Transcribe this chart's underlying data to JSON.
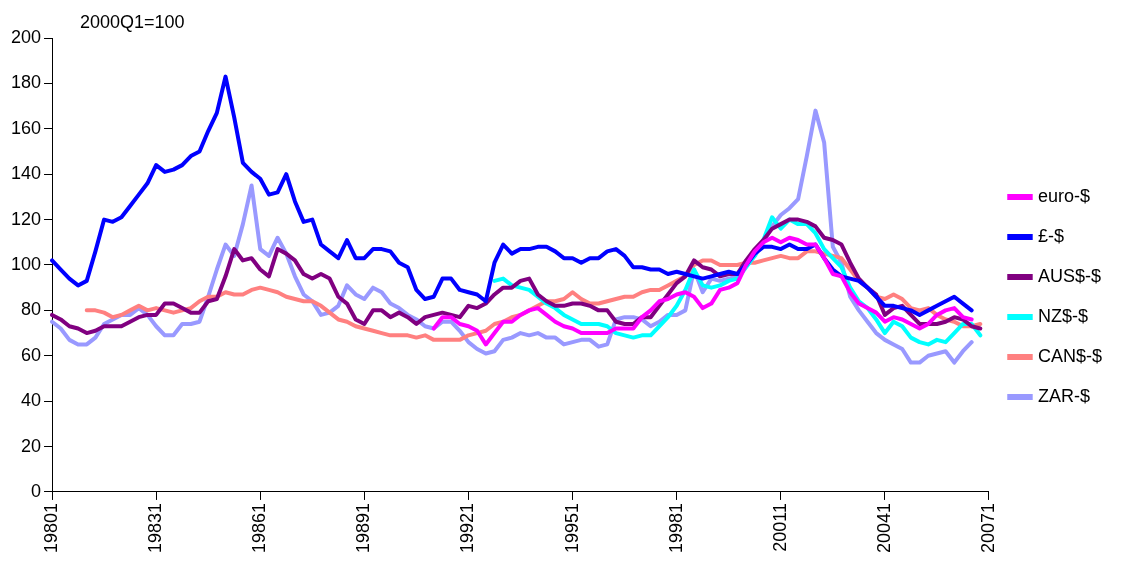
{
  "chart_data": {
    "type": "line",
    "annotations": [
      "2000Q1=100"
    ],
    "categories": [
      "19801",
      null,
      null,
      null,
      null,
      null,
      null,
      null,
      null,
      null,
      null,
      null,
      "19831",
      null,
      null,
      null,
      null,
      null,
      null,
      null,
      null,
      null,
      null,
      null,
      "19861",
      null,
      null,
      null,
      null,
      null,
      null,
      null,
      null,
      null,
      null,
      null,
      "19891",
      null,
      null,
      null,
      null,
      null,
      null,
      null,
      null,
      null,
      null,
      null,
      "19921",
      null,
      null,
      null,
      null,
      null,
      null,
      null,
      null,
      null,
      null,
      null,
      "19951",
      null,
      null,
      null,
      null,
      null,
      null,
      null,
      null,
      null,
      null,
      null,
      "19981",
      null,
      null,
      null,
      null,
      null,
      null,
      null,
      null,
      null,
      null,
      null,
      "20011",
      null,
      null,
      null,
      null,
      null,
      null,
      null,
      null,
      null,
      null,
      null,
      "20041",
      null,
      null,
      null,
      null,
      null,
      null,
      null,
      null,
      null,
      null,
      null,
      "20071"
    ],
    "series": [
      {
        "name": "euro-$",
        "color": "#ff00ff",
        "values": [
          null,
          null,
          null,
          null,
          null,
          null,
          null,
          null,
          null,
          null,
          null,
          null,
          null,
          null,
          null,
          null,
          null,
          null,
          null,
          null,
          null,
          null,
          null,
          null,
          null,
          null,
          null,
          null,
          null,
          null,
          null,
          null,
          null,
          null,
          null,
          null,
          null,
          null,
          null,
          null,
          null,
          null,
          null,
          null,
          72,
          77,
          77,
          74,
          73,
          71,
          65,
          70,
          75,
          75,
          78,
          80,
          81,
          78,
          75,
          73,
          72,
          70,
          70,
          70,
          70,
          72,
          72,
          72,
          77,
          80,
          84,
          85,
          87,
          88,
          86,
          81,
          83,
          89,
          90,
          92,
          100,
          106,
          110,
          112,
          110,
          112,
          111,
          109,
          109,
          103,
          96,
          95,
          88,
          83,
          81,
          79,
          75,
          77,
          76,
          74,
          72,
          74,
          78,
          80,
          81,
          77,
          76,
          null,
          null
        ]
      },
      {
        "name": "£-$",
        "color": "#0000ff",
        "values": [
          102,
          98,
          94,
          91,
          93,
          106,
          120,
          119,
          121,
          126,
          131,
          136,
          144,
          141,
          142,
          144,
          148,
          150,
          159,
          167,
          183,
          165,
          145,
          141,
          138,
          131,
          132,
          140,
          128,
          119,
          120,
          109,
          106,
          103,
          111,
          103,
          103,
          107,
          107,
          106,
          101,
          99,
          89,
          85,
          86,
          94,
          94,
          89,
          88,
          87,
          84,
          101,
          109,
          105,
          107,
          107,
          108,
          108,
          106,
          103,
          103,
          101,
          103,
          103,
          106,
          107,
          104,
          99,
          99,
          98,
          98,
          96,
          97,
          96,
          95,
          94,
          95,
          96,
          97,
          96,
          100,
          105,
          108,
          108,
          107,
          109,
          107,
          107,
          109,
          103,
          98,
          95,
          94,
          93,
          90,
          86,
          82,
          82,
          81,
          80,
          78,
          80,
          82,
          84,
          86,
          83,
          80,
          null,
          null
        ]
      },
      {
        "name": "AUS$-$",
        "color": "#800080",
        "values": [
          78,
          76,
          73,
          72,
          70,
          71,
          73,
          73,
          73,
          75,
          77,
          78,
          78,
          83,
          83,
          81,
          79,
          79,
          84,
          85,
          95,
          107,
          102,
          103,
          98,
          95,
          107,
          105,
          102,
          96,
          94,
          96,
          94,
          86,
          83,
          76,
          74,
          80,
          80,
          77,
          79,
          77,
          74,
          77,
          78,
          79,
          78,
          77,
          82,
          81,
          83,
          87,
          90,
          90,
          93,
          94,
          87,
          84,
          82,
          82,
          83,
          83,
          82,
          80,
          80,
          75,
          74,
          74,
          77,
          77,
          82,
          87,
          92,
          95,
          102,
          99,
          98,
          95,
          96,
          96,
          102,
          107,
          111,
          116,
          118,
          120,
          120,
          119,
          117,
          112,
          111,
          109,
          101,
          94,
          90,
          87,
          78,
          81,
          82,
          78,
          74,
          74,
          74,
          75,
          77,
          76,
          73,
          72,
          null
        ]
      },
      {
        "name": "NZ$-$",
        "color": "#00ffff",
        "values": [
          null,
          null,
          null,
          null,
          null,
          null,
          null,
          null,
          null,
          null,
          null,
          null,
          null,
          null,
          null,
          null,
          null,
          null,
          null,
          null,
          null,
          null,
          null,
          null,
          null,
          null,
          null,
          null,
          null,
          null,
          null,
          null,
          null,
          null,
          null,
          null,
          null,
          null,
          null,
          null,
          null,
          null,
          null,
          null,
          null,
          null,
          null,
          null,
          null,
          null,
          null,
          93,
          94,
          91,
          90,
          89,
          86,
          83,
          81,
          78,
          76,
          74,
          74,
          74,
          73,
          70,
          69,
          68,
          69,
          69,
          73,
          77,
          82,
          89,
          98,
          91,
          90,
          91,
          93,
          94,
          99,
          104,
          111,
          121,
          116,
          120,
          118,
          118,
          114,
          107,
          103,
          99,
          90,
          84,
          81,
          76,
          70,
          75,
          73,
          68,
          66,
          65,
          67,
          66,
          70,
          74,
          74,
          69,
          null
        ]
      },
      {
        "name": "CAN$-$",
        "color": "#ff8080",
        "values": [
          null,
          null,
          null,
          null,
          80,
          80,
          79,
          77,
          78,
          80,
          82,
          80,
          81,
          80,
          79,
          80,
          81,
          84,
          86,
          86,
          88,
          87,
          87,
          89,
          90,
          89,
          88,
          86,
          85,
          84,
          84,
          82,
          79,
          76,
          75,
          73,
          72,
          71,
          70,
          69,
          69,
          69,
          68,
          69,
          67,
          67,
          67,
          67,
          69,
          70,
          71,
          74,
          75,
          77,
          78,
          80,
          82,
          84,
          84,
          85,
          88,
          85,
          83,
          83,
          84,
          85,
          86,
          86,
          88,
          89,
          89,
          91,
          93,
          95,
          100,
          102,
          102,
          100,
          100,
          100,
          101,
          101,
          102,
          103,
          104,
          103,
          103,
          106,
          106,
          105,
          104,
          103,
          98,
          93,
          90,
          86,
          85,
          87,
          85,
          81,
          80,
          81,
          78,
          76,
          75,
          73,
          73,
          74,
          null
        ]
      },
      {
        "name": "ZAR-$",
        "color": "#9999ff",
        "values": [
          75,
          72,
          67,
          65,
          65,
          68,
          74,
          76,
          78,
          78,
          81,
          78,
          73,
          69,
          69,
          74,
          74,
          75,
          86,
          98,
          109,
          104,
          118,
          135,
          107,
          104,
          112,
          105,
          95,
          87,
          84,
          78,
          79,
          82,
          91,
          87,
          85,
          90,
          88,
          83,
          81,
          78,
          76,
          73,
          72,
          75,
          75,
          71,
          66,
          63,
          61,
          62,
          67,
          68,
          70,
          69,
          70,
          68,
          68,
          65,
          66,
          67,
          67,
          64,
          65,
          76,
          77,
          77,
          76,
          73,
          75,
          78,
          78,
          80,
          98,
          88,
          94,
          93,
          94,
          95,
          100,
          104,
          110,
          117,
          122,
          125,
          129,
          148,
          168,
          154,
          108,
          101,
          86,
          80,
          75,
          70,
          67,
          65,
          63,
          57,
          57,
          60,
          61,
          62,
          57,
          62,
          66,
          null,
          null
        ]
      }
    ],
    "ylim": [
      0,
      200
    ],
    "yticks": [
      0,
      20,
      40,
      60,
      80,
      100,
      120,
      140,
      160,
      180,
      200
    ],
    "legend": "right",
    "grid": false,
    "marker": "none",
    "line_style": "solid"
  }
}
